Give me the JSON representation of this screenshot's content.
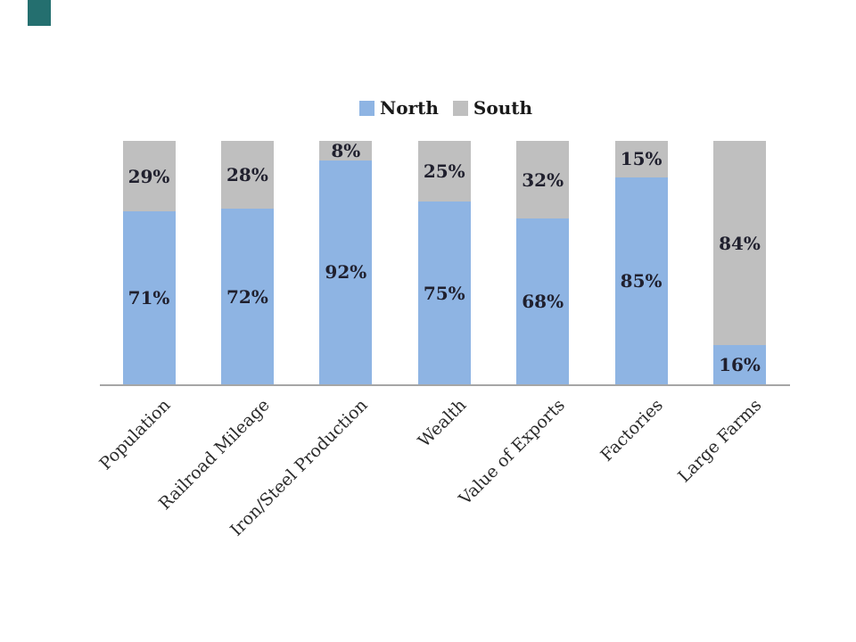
{
  "slide": {
    "background": "#FFFFFF",
    "accent_bar_color": "#246F6F"
  },
  "chart_data": {
    "type": "bar",
    "stacked": true,
    "title": "",
    "xlabel": "",
    "ylabel": "",
    "value_suffix": "%",
    "ylim": [
      0,
      100
    ],
    "grid": false,
    "legend_position": "top-center",
    "axis_line_color": "#A6A6A6",
    "categories": [
      "Population",
      "Railroad Mileage",
      "Iron/Steel Production",
      "Wealth",
      "Value of Exports",
      "Factories",
      "Large Farms"
    ],
    "series": [
      {
        "name": "North",
        "color": "#8EB4E3",
        "values": [
          71,
          72,
          92,
          75,
          68,
          85,
          16
        ]
      },
      {
        "name": "South",
        "color": "#BFBFBF",
        "values": [
          29,
          28,
          8,
          25,
          32,
          15,
          84
        ]
      }
    ],
    "data_labels": {
      "North": [
        "71%",
        "72%",
        "92%",
        "75%",
        "68%",
        "85%",
        "16%"
      ],
      "South": [
        "29%",
        "28%",
        "8%",
        "25%",
        "32%",
        "15%",
        "84%"
      ]
    }
  }
}
